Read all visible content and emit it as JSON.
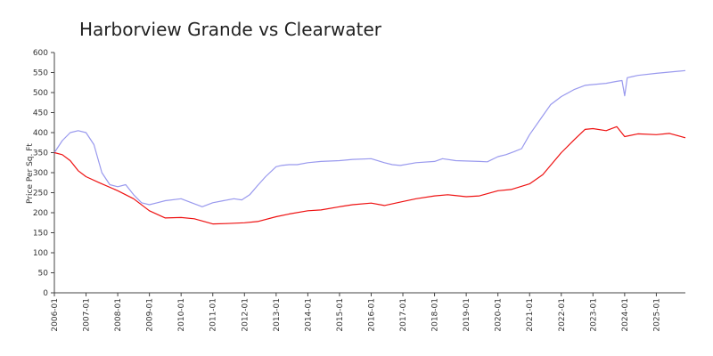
{
  "chart_data": {
    "type": "line",
    "title": "Harborview Grande vs Clearwater",
    "xlabel": "",
    "ylabel": "Price Per Sq. Ft",
    "ylim": [
      0,
      600
    ],
    "yticks": [
      0,
      50,
      100,
      150,
      200,
      250,
      300,
      350,
      400,
      450,
      500,
      550,
      600
    ],
    "xlim": [
      "2006-01",
      "2025-12"
    ],
    "xticks": [
      "2006-01",
      "2007-01",
      "2008-01",
      "2009-01",
      "2010-01",
      "2011-01",
      "2012-01",
      "2013-01",
      "2014-01",
      "2015-01",
      "2016-01",
      "2017-01",
      "2018-01",
      "2019-01",
      "2020-01",
      "2021-01",
      "2022-01",
      "2023-01",
      "2024-01",
      "2025-01"
    ],
    "grid": false,
    "legend": "none",
    "series": [
      {
        "color": "#9999ee",
        "x": [
          "2006-01",
          "2006-04",
          "2006-07",
          "2006-10",
          "2007-01",
          "2007-04",
          "2007-07",
          "2007-10",
          "2008-01",
          "2008-04",
          "2008-07",
          "2008-10",
          "2009-01",
          "2009-04",
          "2009-07",
          "2010-01",
          "2010-05",
          "2010-09",
          "2011-01",
          "2011-05",
          "2011-09",
          "2011-12",
          "2012-03",
          "2012-06",
          "2012-09",
          "2013-01",
          "2013-03",
          "2013-06",
          "2013-09",
          "2014-01",
          "2014-06",
          "2015-01",
          "2015-06",
          "2016-01",
          "2016-06",
          "2016-09",
          "2016-12",
          "2017-06",
          "2018-01",
          "2018-04",
          "2018-09",
          "2019-06",
          "2019-09",
          "2020-01",
          "2020-04",
          "2020-07",
          "2020-10",
          "2021-01",
          "2021-06",
          "2021-09",
          "2022-01",
          "2022-06",
          "2022-10",
          "2023-01",
          "2023-06",
          "2023-10",
          "2023-12",
          "2024-01",
          "2024-02",
          "2024-04",
          "2024-06",
          "2025-01",
          "2025-12"
        ],
        "y": [
          350,
          380,
          400,
          405,
          400,
          370,
          300,
          270,
          265,
          270,
          245,
          225,
          220,
          225,
          230,
          235,
          225,
          215,
          225,
          230,
          235,
          232,
          245,
          268,
          290,
          315,
          318,
          320,
          320,
          325,
          328,
          330,
          333,
          335,
          325,
          320,
          318,
          325,
          328,
          335,
          330,
          328,
          327,
          340,
          345,
          352,
          360,
          395,
          442,
          470,
          490,
          508,
          518,
          520,
          523,
          528,
          530,
          492,
          537,
          540,
          543,
          548,
          555
        ]
      },
      {
        "color": "#ee1111",
        "x": [
          "2006-01",
          "2006-04",
          "2006-07",
          "2006-10",
          "2007-01",
          "2007-06",
          "2008-01",
          "2008-07",
          "2009-01",
          "2009-07",
          "2010-01",
          "2010-06",
          "2011-01",
          "2011-06",
          "2012-01",
          "2012-06",
          "2013-01",
          "2013-06",
          "2014-01",
          "2014-06",
          "2015-01",
          "2015-06",
          "2016-01",
          "2016-06",
          "2017-01",
          "2017-06",
          "2018-01",
          "2018-06",
          "2019-01",
          "2019-06",
          "2020-01",
          "2020-06",
          "2021-01",
          "2021-06",
          "2022-01",
          "2022-06",
          "2022-10",
          "2023-01",
          "2023-06",
          "2023-10",
          "2024-01",
          "2024-06",
          "2025-01",
          "2025-06",
          "2025-12"
        ],
        "y": [
          350,
          345,
          330,
          305,
          290,
          275,
          255,
          235,
          205,
          187,
          188,
          185,
          172,
          173,
          175,
          178,
          190,
          197,
          205,
          207,
          215,
          220,
          224,
          218,
          228,
          235,
          242,
          245,
          240,
          242,
          255,
          258,
          272,
          295,
          350,
          383,
          408,
          410,
          405,
          415,
          390,
          397,
          395,
          398,
          387
        ]
      }
    ]
  }
}
